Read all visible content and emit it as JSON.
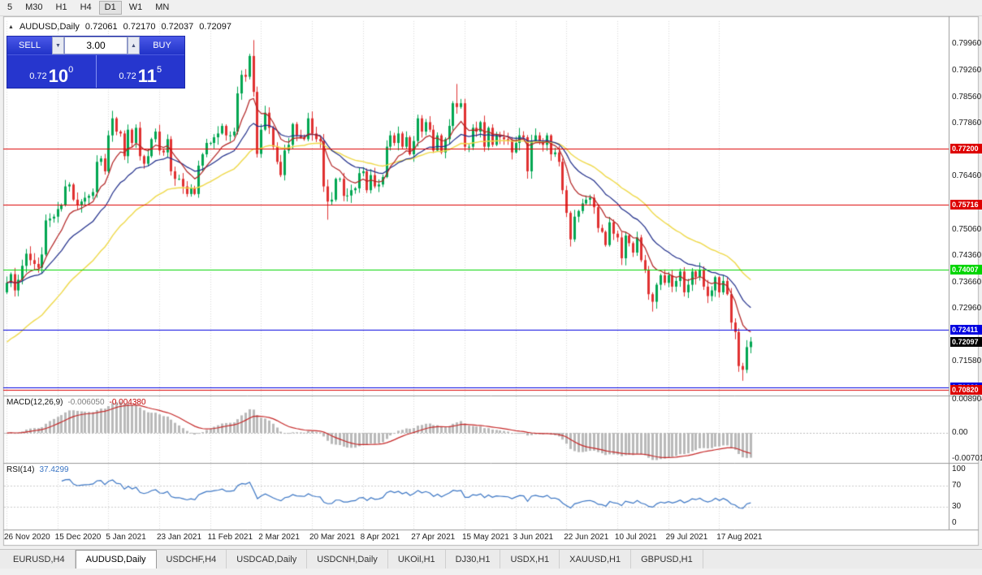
{
  "toolbar": {
    "periods": [
      {
        "label": "5",
        "active": false
      },
      {
        "label": "M30",
        "active": false
      },
      {
        "label": "H1",
        "active": false
      },
      {
        "label": "H4",
        "active": false
      },
      {
        "label": "D1",
        "active": true
      },
      {
        "label": "W1",
        "active": false
      },
      {
        "label": "MN",
        "active": false
      }
    ]
  },
  "chart": {
    "symbol": "AUDUSD,Daily",
    "ohlc": {
      "open": "0.72061",
      "high": "0.72170",
      "low": "0.72037",
      "close": "0.72097"
    }
  },
  "one_click": {
    "sell_label": "SELL",
    "buy_label": "BUY",
    "volume": "3.00",
    "bid_prefix": "0.72",
    "bid_big": "10",
    "bid_sup": "0",
    "ask_prefix": "0.72",
    "ask_big": "11",
    "ask_sup": "5"
  },
  "main_pane": {
    "y_range": [
      0.7067,
      0.80572
    ],
    "ticks": [
      {
        "label": "0.79960",
        "value": 0.7996
      },
      {
        "label": "0.79260",
        "value": 0.7926
      },
      {
        "label": "0.78560",
        "value": 0.7856
      },
      {
        "label": "0.77860",
        "value": 0.7786
      },
      {
        "label": "0.76460",
        "value": 0.7646
      },
      {
        "label": "0.75060",
        "value": 0.7506
      },
      {
        "label": "0.74360",
        "value": 0.7436
      },
      {
        "label": "0.73660",
        "value": 0.7366
      },
      {
        "label": "0.72960",
        "value": 0.7296
      },
      {
        "label": "0.71580",
        "value": 0.7158
      }
    ],
    "levels": [
      {
        "label": "0.77200",
        "value": 0.772,
        "color": "#DD0000"
      },
      {
        "label": "0.75716",
        "value": 0.75716,
        "color": "#DD0000"
      },
      {
        "label": "0.74007",
        "value": 0.74007,
        "color": "#00D500"
      },
      {
        "label": "0.72411",
        "value": 0.72411,
        "color": "#0000E0"
      },
      {
        "label": "0.70880",
        "value": 0.7088,
        "color": "#0000E0"
      },
      {
        "label": "0.70820",
        "value": 0.7082,
        "color": "#DD0000"
      }
    ],
    "current_price": {
      "label": "0.72097",
      "value": 0.72097,
      "color": "#000000"
    },
    "ma": {
      "fast_period": 9,
      "mid_period": 21,
      "slow_period": 40,
      "slow_seed": 0.72
    },
    "candles": {
      "first_open": 0.734,
      "closes": [
        0.7365,
        0.7388,
        0.7345,
        0.7373,
        0.741,
        0.7442,
        0.7425,
        0.7415,
        0.7405,
        0.744,
        0.753,
        0.7535,
        0.754,
        0.756,
        0.757,
        0.762,
        0.7625,
        0.7585,
        0.757,
        0.758,
        0.759,
        0.7595,
        0.7605,
        0.7685,
        0.7694,
        0.766,
        0.7755,
        0.78,
        0.7765,
        0.776,
        0.77,
        0.777,
        0.7735,
        0.7775,
        0.77,
        0.768,
        0.77,
        0.7745,
        0.7765,
        0.7715,
        0.771,
        0.7745,
        0.766,
        0.764,
        0.764,
        0.762,
        0.76,
        0.7615,
        0.76,
        0.7675,
        0.7705,
        0.7735,
        0.7735,
        0.775,
        0.776,
        0.778,
        0.7755,
        0.7755,
        0.7765,
        0.7866,
        0.7915,
        0.791,
        0.7965,
        0.787,
        0.7706,
        0.777,
        0.7815,
        0.7775,
        0.7725,
        0.7685,
        0.765,
        0.7715,
        0.773,
        0.7785,
        0.7755,
        0.775,
        0.7745,
        0.78,
        0.776,
        0.7745,
        0.774,
        0.762,
        0.758,
        0.7585,
        0.764,
        0.764,
        0.7595,
        0.7596,
        0.761,
        0.7615,
        0.7655,
        0.766,
        0.761,
        0.765,
        0.762,
        0.7625,
        0.7645,
        0.7725,
        0.7755,
        0.7735,
        0.776,
        0.7725,
        0.775,
        0.7705,
        0.774,
        0.78,
        0.7765,
        0.779,
        0.777,
        0.7715,
        0.7755,
        0.771,
        0.7745,
        0.778,
        0.784,
        0.783,
        0.784,
        0.7725,
        0.7725,
        0.7775,
        0.7765,
        0.779,
        0.7725,
        0.7775,
        0.773,
        0.7755,
        0.775,
        0.7745,
        0.774,
        0.771,
        0.7735,
        0.7755,
        0.775,
        0.766,
        0.774,
        0.7755,
        0.774,
        0.773,
        0.7755,
        0.7705,
        0.771,
        0.7685,
        0.761,
        0.755,
        0.748,
        0.754,
        0.7555,
        0.7575,
        0.7585,
        0.759,
        0.7565,
        0.751,
        0.75,
        0.7465,
        0.7525,
        0.7495,
        0.7485,
        0.743,
        0.749,
        0.747,
        0.7445,
        0.7485,
        0.7425,
        0.74,
        0.7335,
        0.7315,
        0.736,
        0.7385,
        0.7365,
        0.7385,
        0.7355,
        0.737,
        0.7395,
        0.734,
        0.736,
        0.7395,
        0.738,
        0.74,
        0.7355,
        0.733,
        0.7345,
        0.738,
        0.734,
        0.737,
        0.7335,
        0.726,
        0.7235,
        0.7145,
        0.7135,
        0.7195,
        0.72097
      ],
      "wick_overrides": {
        "27": {
          "h": 0.782
        },
        "63": {
          "h": 0.8007
        },
        "82": {
          "l": 0.7532
        },
        "115": {
          "h": 0.7891
        },
        "144": {
          "l": 0.7478
        },
        "165": {
          "l": 0.7289
        },
        "188": {
          "l": 0.7106
        }
      }
    }
  },
  "macd_pane": {
    "title": "MACD(12,26,9)",
    "value_main": "-0.006050",
    "value_signal": "-0.004380",
    "fast": 12,
    "slow": 26,
    "signal": 9,
    "range": [
      -0.008,
      0.01
    ],
    "ticks": [
      {
        "label": "0.008904",
        "value": 0.008904
      },
      {
        "label": "0.00",
        "value": 0
      },
      {
        "label": "-0.007013",
        "value": -0.007013
      }
    ]
  },
  "rsi_pane": {
    "title": "RSI(14)",
    "value": "37.4299",
    "period": 14,
    "range": [
      -12,
      112
    ],
    "guides": [
      70,
      30
    ],
    "ticks": [
      {
        "label": "100",
        "value": 100
      },
      {
        "label": "70",
        "value": 70
      },
      {
        "label": "30",
        "value": 30
      },
      {
        "label": "0",
        "value": 0
      }
    ]
  },
  "x_axis": {
    "label_every": 13,
    "labels": [
      "26 Nov 2020",
      "15 Dec 2020",
      "5 Jan 2021",
      "23 Jan 2021",
      "11 Feb 2021",
      "2 Mar 2021",
      "20 Mar 2021",
      "8 Apr 2021",
      "27 Apr 2021",
      "15 May 2021",
      "3 Jun 2021",
      "22 Jun 2021",
      "10 Jul 2021",
      "29 Jul 2021",
      "17 Aug 2021"
    ]
  },
  "tabs": [
    {
      "label": "EURUSD,H4",
      "active": false
    },
    {
      "label": "AUDUSD,Daily",
      "active": true
    },
    {
      "label": "USDCHF,H4",
      "active": false
    },
    {
      "label": "USDCAD,Daily",
      "active": false
    },
    {
      "label": "USDCNH,Daily",
      "active": false
    },
    {
      "label": "UKOil,H1",
      "active": false
    },
    {
      "label": "DJ30,H1",
      "active": false
    },
    {
      "label": "USDX,H1",
      "active": false
    },
    {
      "label": "XAUUSD,H1",
      "active": false
    },
    {
      "label": "GBPUSD,H1",
      "active": false
    }
  ],
  "colors": {
    "candle_up": "#00A651",
    "candle_down": "#E03131",
    "ma_fast": "#B22222",
    "ma_mid": "#1F2D8A",
    "ma_slow": "#EFD948",
    "macd_hist": "#B9B9B9",
    "macd_signal": "#C62828",
    "rsi_line": "#3A75C4",
    "value_main": "#808080",
    "value_signal": "#C00000",
    "value_rsi": "#3A75C4",
    "panel_blue": "#2636CE"
  }
}
